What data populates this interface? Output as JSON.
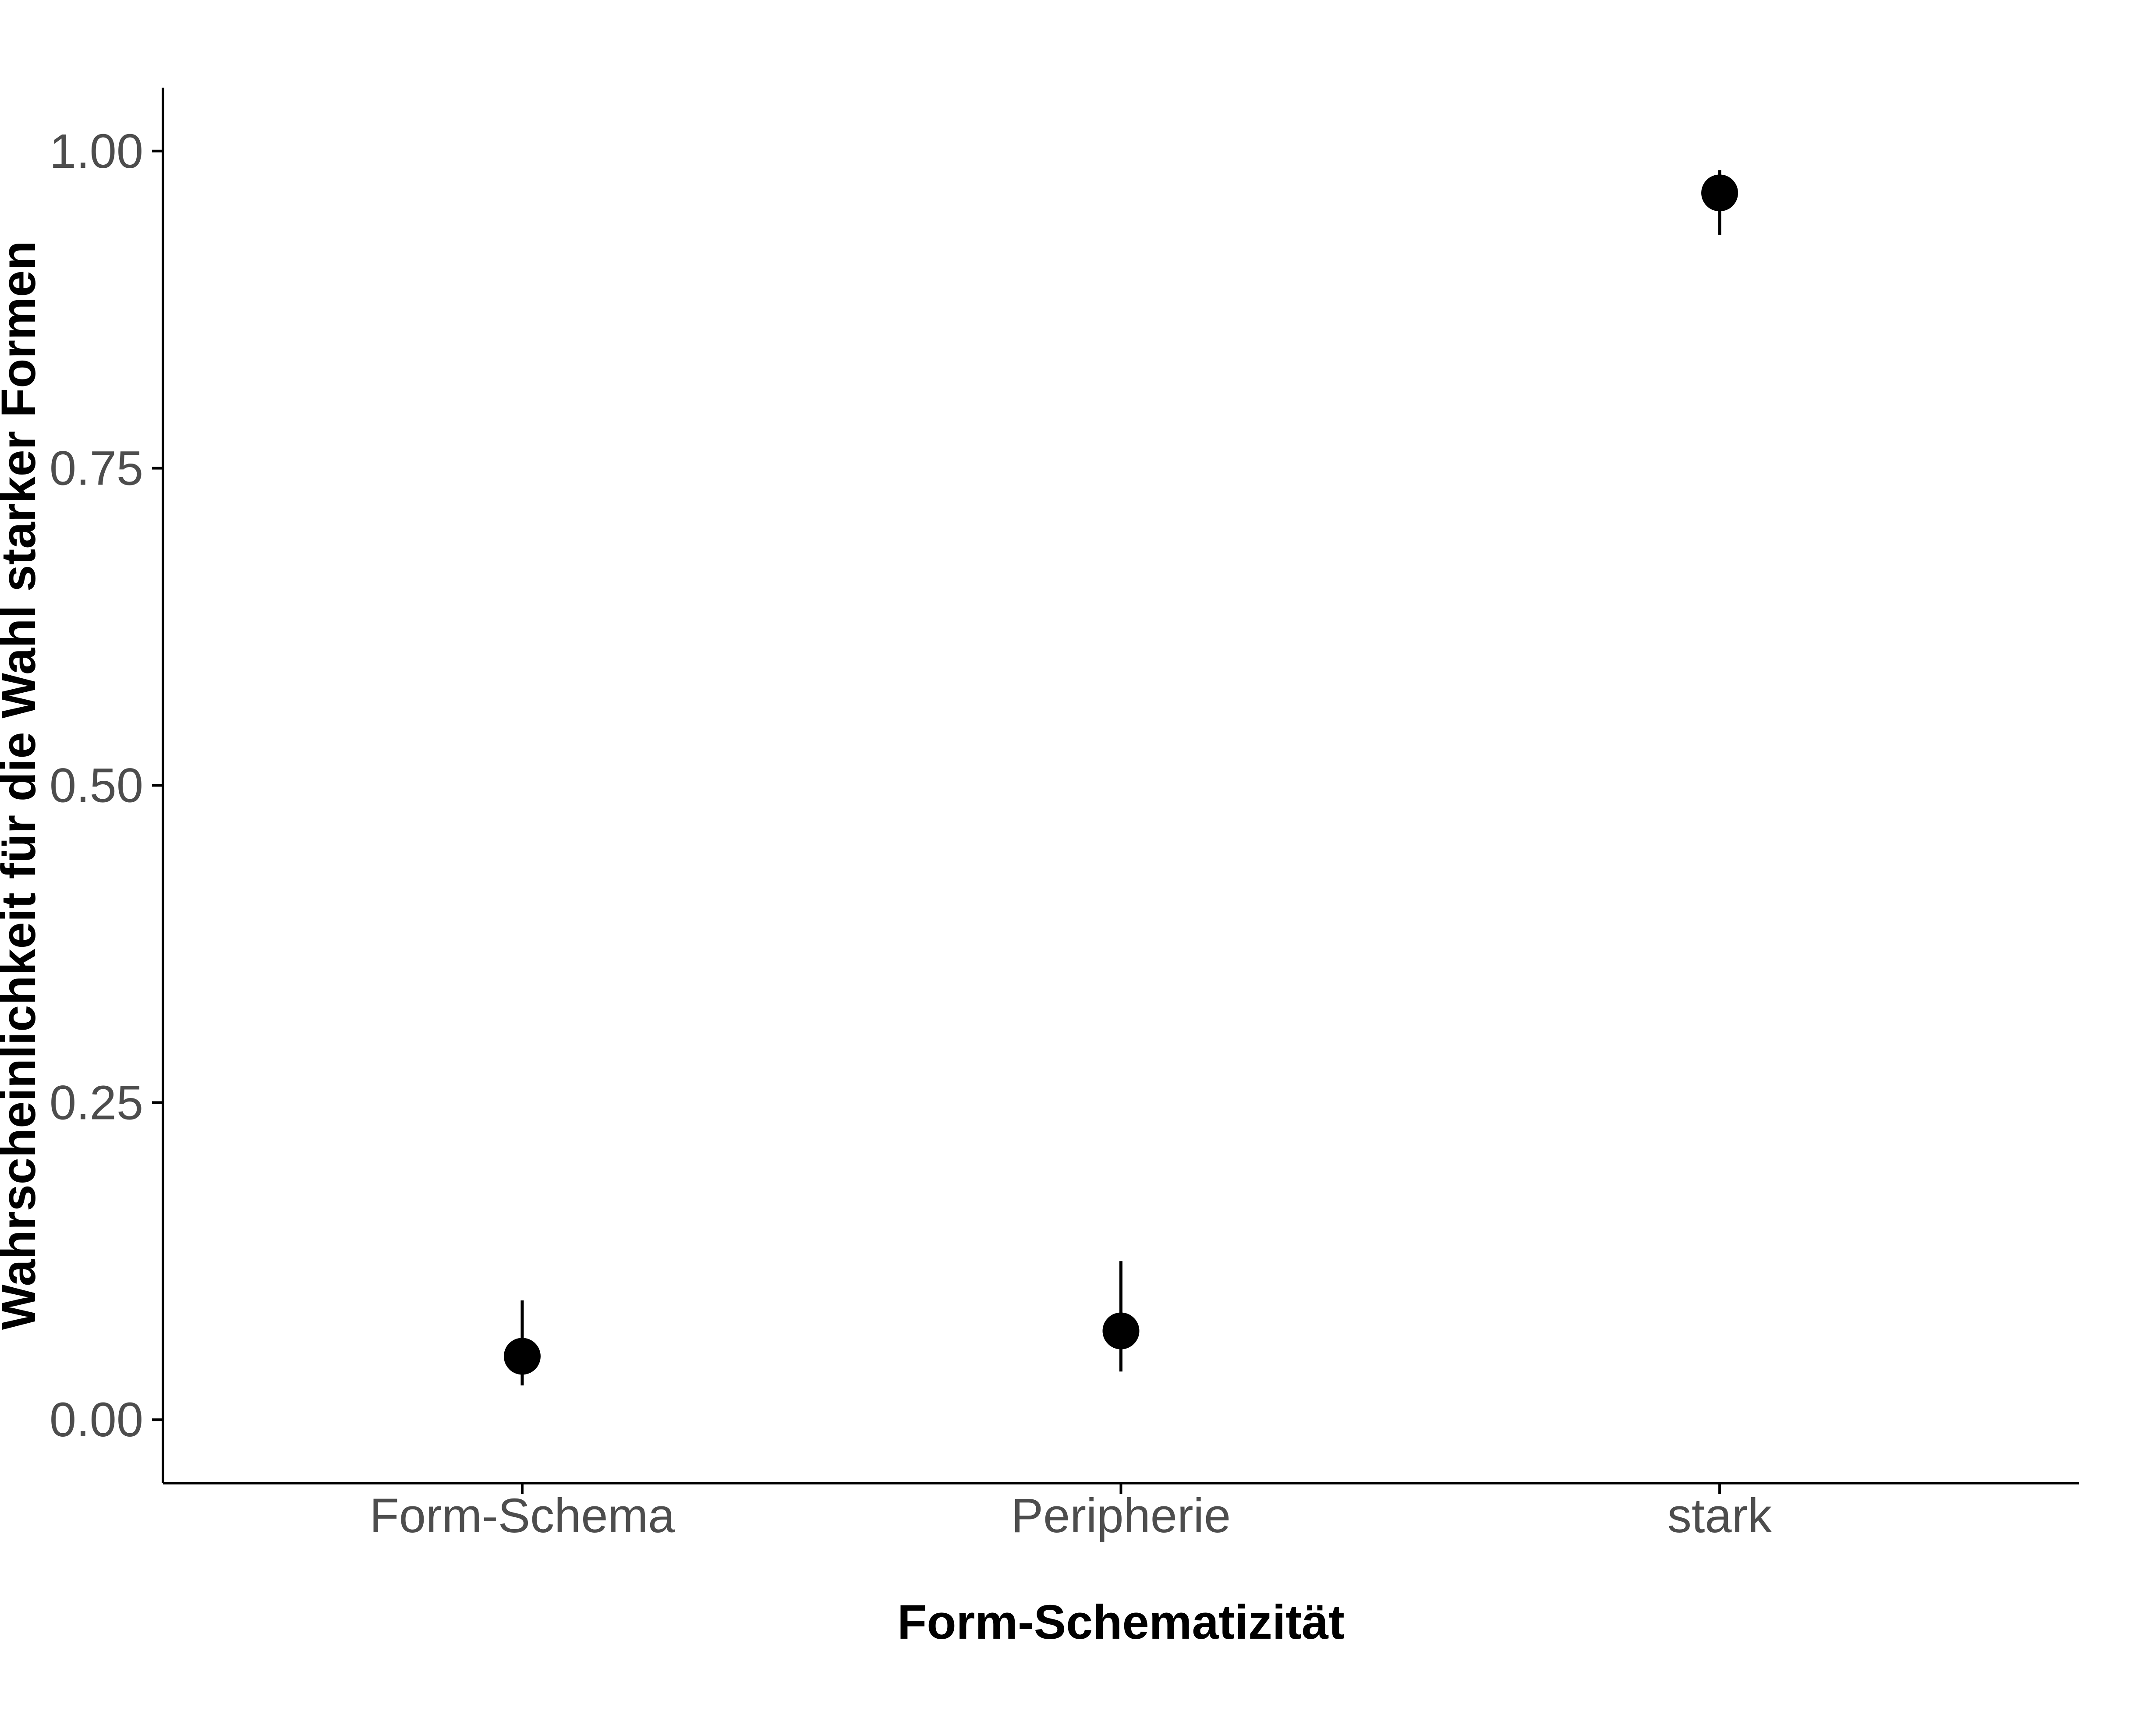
{
  "chart_data": {
    "type": "scatter",
    "categories": [
      "Form-Schema",
      "Peripherie",
      "stark"
    ],
    "values": [
      0.05,
      0.07,
      0.967
    ],
    "lower": [
      0.027,
      0.038,
      0.934
    ],
    "upper": [
      0.094,
      0.125,
      0.985
    ],
    "xlabel": "Form-Schematizität",
    "ylabel": "Wahrscheinlichkeit für die Wahl starker Formen",
    "ylim": [
      -0.05,
      1.05
    ],
    "yticks": [
      0.0,
      0.25,
      0.5,
      0.75,
      1.0
    ],
    "ytick_labels": [
      "0.00",
      "0.25",
      "0.50",
      "0.75",
      "1.00"
    ],
    "grid": false,
    "colors": {
      "point": "#000000",
      "tick_text": "#4d4d4d",
      "axis": "#000000"
    }
  }
}
